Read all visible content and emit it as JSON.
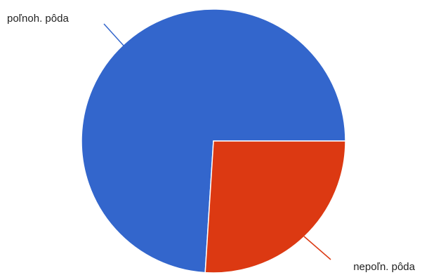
{
  "chart_data": {
    "type": "pie",
    "slices": [
      {
        "label": "poľnoh. pôda",
        "value": 74,
        "color": "#3366cc"
      },
      {
        "label": "nepoľn. pôda",
        "value": 26,
        "color": "#dc3912"
      }
    ],
    "legend": "none",
    "title": ""
  }
}
